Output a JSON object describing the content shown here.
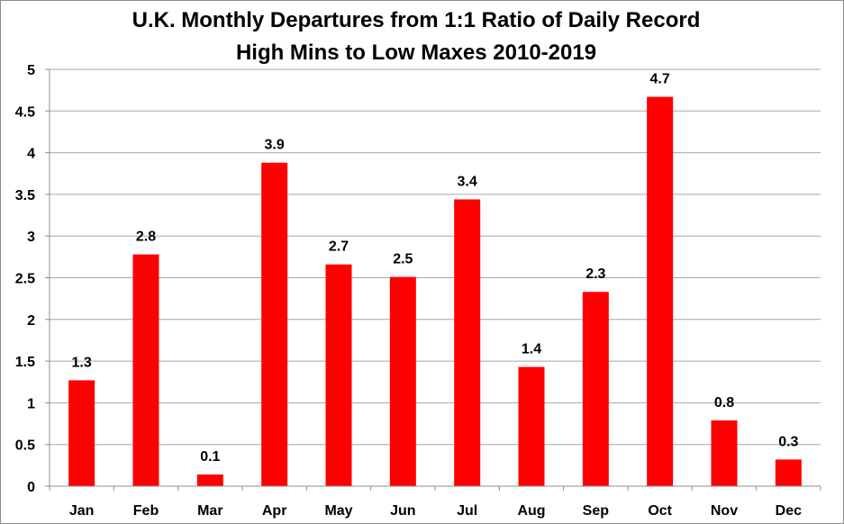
{
  "chart_data": {
    "type": "bar",
    "title_lines": [
      "U.K. Monthly Departures from 1:1 Ratio of Daily Record",
      "High Mins to Low Maxes 2010-2019"
    ],
    "categories": [
      "Jan",
      "Feb",
      "Mar",
      "Apr",
      "May",
      "Jun",
      "Jul",
      "Aug",
      "Sep",
      "Oct",
      "Nov",
      "Dec"
    ],
    "values": [
      1.27,
      2.78,
      0.14,
      3.88,
      2.66,
      2.51,
      3.44,
      1.43,
      2.33,
      4.67,
      0.79,
      0.32
    ],
    "data_labels": [
      "1.3",
      "2.8",
      "0.1",
      "3.9",
      "2.7",
      "2.5",
      "3.4",
      "1.4",
      "2.3",
      "4.7",
      "0.8",
      "0.3"
    ],
    "y_ticks": [
      "0",
      "0.5",
      "1",
      "1.5",
      "2",
      "2.5",
      "3",
      "3.5",
      "4",
      "4.5",
      "5"
    ],
    "ylim": [
      0,
      5
    ],
    "xlabel": "",
    "ylabel": "",
    "grid": true,
    "legend": "none",
    "bar_color": "#ff0000"
  }
}
